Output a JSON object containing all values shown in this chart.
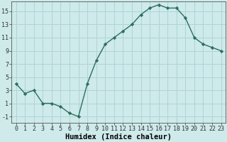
{
  "x": [
    0,
    1,
    2,
    3,
    4,
    5,
    6,
    7,
    8,
    9,
    10,
    11,
    12,
    13,
    14,
    15,
    16,
    17,
    18,
    19,
    20,
    21,
    22,
    23
  ],
  "y": [
    4.0,
    2.5,
    3.0,
    1.0,
    1.0,
    0.5,
    -0.5,
    -1.0,
    4.0,
    7.5,
    10.0,
    11.0,
    12.0,
    13.0,
    14.5,
    15.5,
    16.0,
    15.5,
    15.5,
    14.0,
    11.0,
    10.0,
    9.5,
    9.0
  ],
  "xlabel": "Humidex (Indice chaleur)",
  "line_color": "#2d6e5e",
  "marker": "D",
  "marker_size": 2.2,
  "bg_color": "#ceeaea",
  "grid_color": "#afd4d4",
  "xlim": [
    -0.5,
    23.5
  ],
  "ylim": [
    -2.0,
    16.5
  ],
  "yticks": [
    -1,
    1,
    3,
    5,
    7,
    9,
    11,
    13,
    15
  ],
  "xticks": [
    0,
    1,
    2,
    3,
    4,
    5,
    6,
    7,
    8,
    9,
    10,
    11,
    12,
    13,
    14,
    15,
    16,
    17,
    18,
    19,
    20,
    21,
    22,
    23
  ],
  "xlabel_fontsize": 7.5,
  "tick_fontsize": 6.0,
  "linewidth": 1.0
}
